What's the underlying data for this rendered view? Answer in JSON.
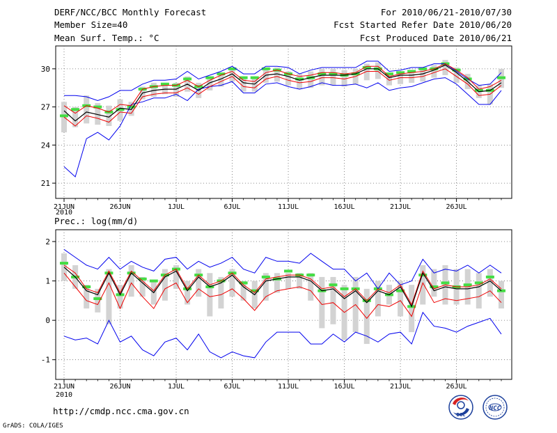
{
  "header": {
    "title": "DERF/NCC/BCC Monthly Forecast",
    "member_size": "Member Size=40",
    "variable": "Mean Surf. Temp.: °C",
    "for_range": "For 2010/06/21-2010/07/30",
    "fcst_started": "Fcst Started Refer Date 2010/06/20",
    "fcst_produced": "Fcst Produced Date 2010/06/21"
  },
  "footer": {
    "url": "http://cmdp.ncc.cma.gov.cn",
    "grads_credit": "GrADS: COLA/IGES",
    "bcc_logo_text": "BCC",
    "ncc_logo_text": "NCC"
  },
  "colors": {
    "spread_bar": "#d3d3d3",
    "obs_green": "#44dd44",
    "envelope_blue": "#0000ee",
    "lower_red": "#ee0000",
    "mean_black": "#000000",
    "grid": "#666666"
  },
  "chart_data": [
    {
      "type": "line",
      "title": "Mean Surf. Temp.: °C",
      "x_tick_labels": [
        "21JUN",
        "26JUN",
        "1JUL",
        "6JUL",
        "11JUL",
        "16JUL",
        "21JUL",
        "26JUL"
      ],
      "x_sub_label": "2010",
      "ylim": [
        19.8,
        31.8
      ],
      "y_ticks": [
        21,
        24,
        27,
        30
      ],
      "grid": true,
      "series": {
        "max": [
          27.9,
          27.9,
          27.8,
          27.5,
          27.8,
          28.3,
          28.3,
          28.8,
          29.1,
          29.1,
          29.2,
          29.8,
          29.2,
          29.5,
          29.8,
          30.2,
          29.6,
          29.6,
          30.2,
          30.2,
          30.1,
          29.6,
          29.9,
          30.1,
          30.1,
          30.1,
          30.1,
          30.6,
          30.6,
          29.8,
          29.9,
          30.1,
          30.1,
          30.4,
          30.4,
          29.8,
          29.2,
          28.7,
          28.8,
          29.7
        ],
        "upper_red": [
          27.1,
          26.5,
          27.1,
          26.9,
          26.6,
          27.2,
          27.1,
          28.4,
          28.6,
          28.7,
          28.7,
          29.1,
          28.6,
          29.1,
          29.5,
          29.8,
          29.1,
          29.0,
          29.7,
          29.9,
          29.6,
          29.4,
          29.5,
          29.7,
          29.7,
          29.6,
          29.7,
          30.2,
          30.2,
          29.4,
          29.6,
          29.7,
          29.8,
          30.0,
          30.4,
          29.9,
          29.3,
          28.4,
          28.6,
          29.1
        ],
        "mean": [
          26.7,
          25.9,
          26.6,
          26.4,
          26.2,
          26.9,
          26.8,
          28.1,
          28.3,
          28.4,
          28.4,
          28.8,
          28.3,
          28.9,
          29.2,
          29.6,
          28.9,
          28.8,
          29.5,
          29.6,
          29.4,
          29.1,
          29.3,
          29.5,
          29.5,
          29.5,
          29.6,
          30.0,
          30.0,
          29.3,
          29.5,
          29.5,
          29.6,
          29.9,
          30.3,
          29.7,
          29.0,
          28.2,
          28.3,
          28.9
        ],
        "lower_red": [
          26.2,
          25.5,
          26.3,
          26.1,
          25.8,
          26.6,
          26.5,
          27.8,
          28.0,
          28.1,
          28.1,
          28.5,
          28.0,
          28.6,
          29.0,
          29.4,
          28.6,
          28.5,
          29.2,
          29.4,
          29.1,
          28.9,
          29.0,
          29.3,
          29.3,
          29.2,
          29.4,
          29.8,
          29.8,
          29.1,
          29.3,
          29.3,
          29.4,
          29.7,
          30.0,
          29.4,
          28.8,
          27.9,
          28.0,
          28.7
        ],
        "min": [
          22.3,
          21.5,
          24.5,
          25.0,
          24.4,
          25.5,
          27.2,
          27.4,
          27.7,
          27.7,
          28.0,
          27.5,
          28.4,
          28.6,
          28.7,
          29.0,
          28.1,
          28.1,
          28.8,
          28.9,
          28.6,
          28.4,
          28.6,
          28.9,
          28.7,
          28.7,
          28.8,
          28.5,
          28.9,
          28.3,
          28.5,
          28.6,
          28.9,
          29.2,
          29.3,
          28.8,
          28.0,
          27.2,
          27.2,
          28.3
        ],
        "spread_low": [
          25.0,
          25.4,
          25.7,
          25.6,
          25.5,
          25.9,
          26.3,
          27.6,
          27.8,
          28.0,
          27.8,
          28.2,
          27.7,
          28.3,
          28.6,
          29.0,
          28.2,
          28.2,
          28.9,
          29.0,
          28.7,
          28.4,
          28.5,
          28.7,
          28.7,
          28.6,
          28.8,
          29.1,
          29.2,
          28.7,
          28.8,
          28.9,
          29.0,
          29.3,
          29.5,
          28.9,
          28.4,
          27.7,
          27.2,
          28.5
        ],
        "spread_high": [
          27.4,
          27.0,
          27.9,
          27.3,
          27.1,
          27.6,
          27.4,
          28.6,
          28.9,
          28.9,
          28.9,
          29.4,
          28.9,
          29.4,
          29.6,
          30.1,
          29.4,
          29.3,
          30.0,
          30.1,
          29.8,
          29.6,
          29.8,
          30.0,
          30.0,
          29.9,
          30.0,
          30.4,
          30.5,
          29.6,
          29.8,
          29.9,
          30.1,
          30.3,
          30.7,
          30.1,
          29.6,
          28.7,
          28.8,
          30.0
        ],
        "obs": [
          26.3,
          26.8,
          27.1,
          27.0,
          26.6,
          26.8,
          27.0,
          28.4,
          28.6,
          28.8,
          28.7,
          29.2,
          28.6,
          29.3,
          29.6,
          30.0,
          29.3,
          29.3,
          30.0,
          29.9,
          29.6,
          29.2,
          29.3,
          29.6,
          29.6,
          29.5,
          29.6,
          30.1,
          30.0,
          29.6,
          29.7,
          29.8,
          30.0,
          30.0,
          30.4,
          29.9,
          29.2,
          28.3,
          28.3,
          29.3
        ]
      }
    },
    {
      "type": "line",
      "title": "Prec.: log(mm/d)",
      "x_tick_labels": [
        "21JUN",
        "26JUN",
        "1JUL",
        "6JUL",
        "11JUL",
        "16JUL",
        "21JUL",
        "26JUL"
      ],
      "x_sub_label": "2010",
      "ylim": [
        -1.5,
        2.3
      ],
      "y_ticks": [
        -1,
        0,
        1,
        2
      ],
      "grid": true,
      "series": {
        "max": [
          1.8,
          1.6,
          1.4,
          1.3,
          1.6,
          1.3,
          1.5,
          1.35,
          1.25,
          1.55,
          1.6,
          1.3,
          1.5,
          1.35,
          1.45,
          1.6,
          1.3,
          1.2,
          1.6,
          1.5,
          1.5,
          1.45,
          1.7,
          1.5,
          1.3,
          1.3,
          1.0,
          1.2,
          0.8,
          1.2,
          0.9,
          1.0,
          1.55,
          1.2,
          1.3,
          1.25,
          1.4,
          1.2,
          1.4,
          1.2
        ],
        "upper_red": [
          1.4,
          1.2,
          0.8,
          0.7,
          1.25,
          0.7,
          1.25,
          1.0,
          0.75,
          1.15,
          1.3,
          0.8,
          1.15,
          0.9,
          1.0,
          1.2,
          0.9,
          0.7,
          1.05,
          1.1,
          1.15,
          1.15,
          1.05,
          0.8,
          0.85,
          0.6,
          0.8,
          0.5,
          0.8,
          0.7,
          0.9,
          0.4,
          1.25,
          0.8,
          0.9,
          0.85,
          0.85,
          0.9,
          1.05,
          0.8
        ],
        "mean": [
          1.35,
          1.1,
          0.75,
          0.65,
          1.2,
          0.65,
          1.2,
          0.95,
          0.7,
          1.1,
          1.25,
          0.75,
          1.1,
          0.85,
          0.95,
          1.15,
          0.85,
          0.65,
          1.0,
          1.05,
          1.1,
          1.1,
          1.0,
          0.75,
          0.8,
          0.55,
          0.75,
          0.45,
          0.75,
          0.65,
          0.85,
          0.35,
          1.2,
          0.75,
          0.85,
          0.8,
          0.8,
          0.85,
          1.0,
          0.75
        ],
        "lower_red": [
          1.2,
          0.85,
          0.5,
          0.4,
          0.95,
          0.3,
          0.95,
          0.6,
          0.3,
          0.8,
          0.95,
          0.45,
          0.8,
          0.6,
          0.65,
          0.8,
          0.55,
          0.25,
          0.6,
          0.75,
          0.8,
          0.85,
          0.75,
          0.4,
          0.45,
          0.2,
          0.4,
          0.05,
          0.4,
          0.35,
          0.5,
          0.1,
          0.95,
          0.45,
          0.55,
          0.5,
          0.55,
          0.6,
          0.75,
          0.45
        ],
        "min": [
          -0.4,
          -0.5,
          -0.45,
          -0.6,
          0.0,
          -0.55,
          -0.4,
          -0.75,
          -0.9,
          -0.55,
          -0.45,
          -0.75,
          -0.35,
          -0.8,
          -0.95,
          -0.8,
          -0.9,
          -0.95,
          -0.55,
          -0.3,
          -0.3,
          -0.3,
          -0.6,
          -0.6,
          -0.35,
          -0.55,
          -0.3,
          -0.4,
          -0.55,
          -0.35,
          -0.3,
          -0.6,
          0.2,
          -0.15,
          -0.2,
          -0.3,
          -0.15,
          -0.05,
          0.05,
          -0.35
        ],
        "spread_low": [
          1.0,
          0.8,
          0.3,
          0.2,
          -0.1,
          0.3,
          0.6,
          0.6,
          0.4,
          0.5,
          0.8,
          0.4,
          0.6,
          0.1,
          0.3,
          0.6,
          0.5,
          0.3,
          0.5,
          0.7,
          0.8,
          0.8,
          0.5,
          -0.2,
          -0.1,
          -0.5,
          -0.3,
          -0.6,
          0.1,
          0.4,
          0.1,
          -0.3,
          0.4,
          0.6,
          0.4,
          0.4,
          0.4,
          0.3,
          0.6,
          0.3
        ],
        "spread_high": [
          1.7,
          1.4,
          0.9,
          0.8,
          1.3,
          0.9,
          1.4,
          1.1,
          1.0,
          1.3,
          1.4,
          1.0,
          1.3,
          1.2,
          1.1,
          1.3,
          1.0,
          1.0,
          1.2,
          1.2,
          1.2,
          1.2,
          1.2,
          1.1,
          1.1,
          0.9,
          1.1,
          0.8,
          1.0,
          0.9,
          1.0,
          0.9,
          1.4,
          1.3,
          1.4,
          1.3,
          1.3,
          1.2,
          1.3,
          1.0
        ],
        "obs": [
          1.45,
          1.1,
          0.85,
          0.55,
          1.2,
          0.65,
          1.2,
          1.05,
          1.0,
          1.15,
          1.3,
          0.8,
          1.15,
          0.85,
          1.0,
          1.2,
          0.95,
          0.75,
          1.1,
          1.05,
          1.25,
          1.15,
          1.15,
          0.75,
          0.9,
          0.8,
          0.8,
          0.5,
          0.8,
          0.65,
          0.75,
          0.35,
          1.15,
          0.85,
          0.95,
          0.85,
          0.9,
          0.95,
          1.1,
          0.75
        ]
      }
    }
  ]
}
